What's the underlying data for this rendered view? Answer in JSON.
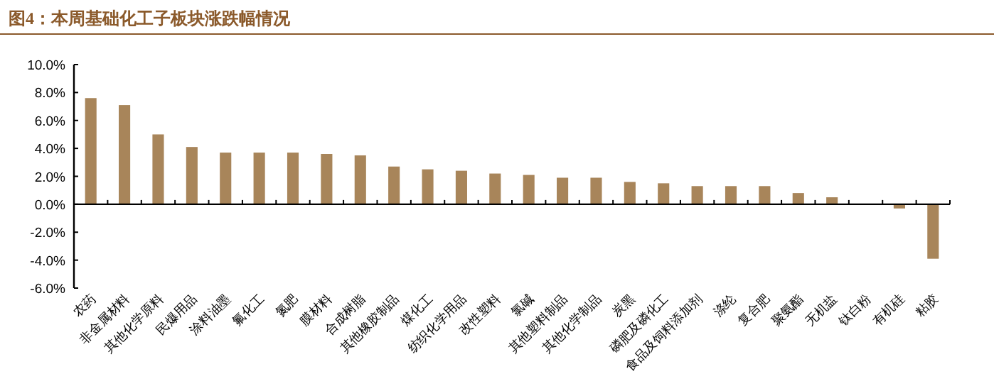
{
  "chart_data": {
    "type": "bar",
    "title": "图4：本周基础化工子板块涨跌幅情况",
    "categories": [
      "农药",
      "非金属材料",
      "其他化学原料",
      "民爆用品",
      "涂料油墨",
      "氟化工",
      "氮肥",
      "膜材料",
      "合成树脂",
      "其他橡胶制品",
      "煤化工",
      "纺织化学用品",
      "改性塑料",
      "氯碱",
      "其他塑料制品",
      "其他化学制品",
      "炭黑",
      "磷肥及磷化工",
      "食品及饲料添加剂",
      "涤纶",
      "复合肥",
      "聚氨酯",
      "无机盐",
      "钛白粉",
      "有机硅",
      "粘胶"
    ],
    "values": [
      7.6,
      7.1,
      5.0,
      4.1,
      3.7,
      3.7,
      3.7,
      3.6,
      3.5,
      2.7,
      2.5,
      2.4,
      2.2,
      2.1,
      1.9,
      1.9,
      1.6,
      1.5,
      1.3,
      1.3,
      1.3,
      0.8,
      0.5,
      0.0,
      -0.3,
      -3.9
    ],
    "color": "#a8855a",
    "ylim": [
      -6,
      10
    ],
    "yticks": [
      {
        "value": -6,
        "label": "-6.0%"
      },
      {
        "value": -4,
        "label": "-4.0%"
      },
      {
        "value": -2,
        "label": "-2.0%"
      },
      {
        "value": 0,
        "label": "0.0%"
      },
      {
        "value": 2,
        "label": "2.0%"
      },
      {
        "value": 4,
        "label": "4.0%"
      },
      {
        "value": 6,
        "label": "6.0%"
      },
      {
        "value": 8,
        "label": "8.0%"
      },
      {
        "value": 10,
        "label": "10.0%"
      }
    ]
  }
}
